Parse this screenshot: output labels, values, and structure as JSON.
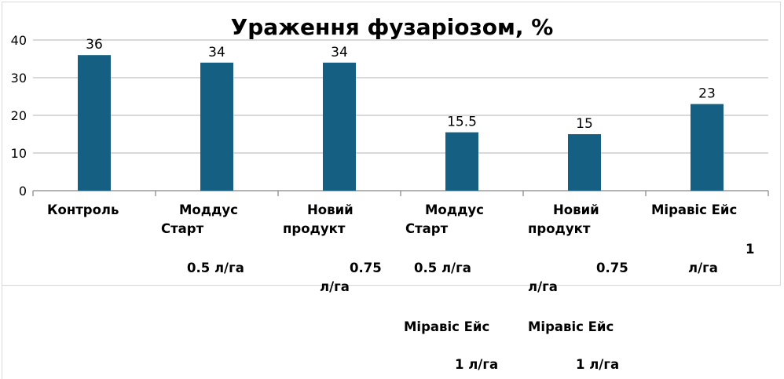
{
  "chart_data": {
    "type": "bar",
    "title": "Ураження фузаріозом, %",
    "categories": [
      "Контроль",
      "Моддус Старт 0.5 л/га",
      "Новий продукт 0.75 л/га",
      "Моддус Старт 0.5 л/га Міравіс Ейс 1 л/га",
      "Новий продукт 0.75 л/га Міравіс Ейс 1 л/га",
      "Міравіс Ейс 1 л/га"
    ],
    "category_lines": [
      [
        "Контроль"
      ],
      [
        "Моддус",
        "Старт",
        "0.5 л/га"
      ],
      [
        "Новий",
        "продукт",
        "0.75",
        "л/га"
      ],
      [
        "Моддус",
        "Старт",
        "0.5 л/га",
        "Міравіс Ейс",
        "1 л/га"
      ],
      [
        "Новий",
        "продукт",
        "0.75",
        "л/га",
        "Міравіс Ейс",
        "1 л/га"
      ],
      [
        "Міравіс Ейс",
        "1",
        "л/га"
      ]
    ],
    "values": [
      36,
      34,
      34,
      15.5,
      15,
      23
    ],
    "data_labels": [
      "36",
      "34",
      "34",
      "15.5",
      "15",
      "23"
    ],
    "ylim": [
      0,
      40
    ],
    "yticks": [
      "0",
      "10",
      "20",
      "30",
      "40"
    ],
    "xlabel": "",
    "ylabel": "",
    "grid": true,
    "bar_color": "#156082",
    "grid_color": "#b3b3b3",
    "axis_color": "#9a9a9a"
  }
}
